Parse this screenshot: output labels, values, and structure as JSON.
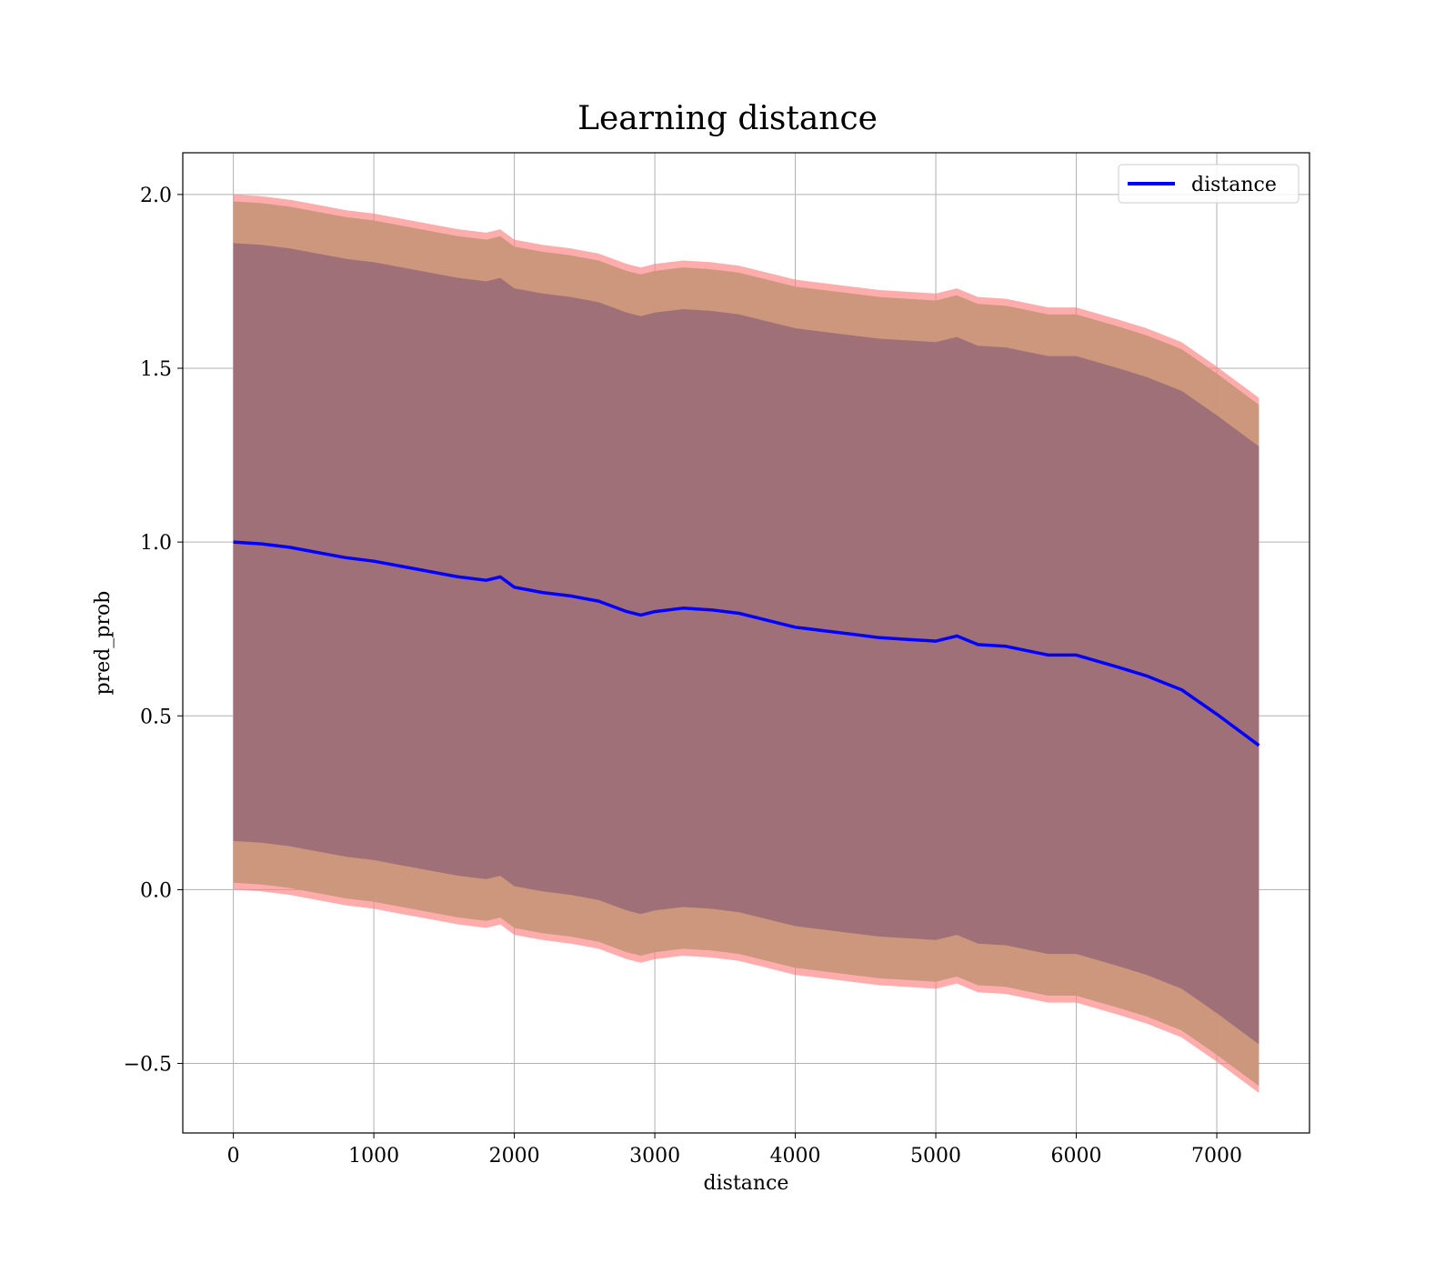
{
  "chart_data": {
    "type": "line",
    "title": "Learning distance",
    "xlabel": "distance",
    "ylabel": "pred_prob",
    "xlim": [
      -360,
      7660
    ],
    "ylim": [
      -0.7,
      2.12
    ],
    "xticks": [
      0,
      1000,
      2000,
      3000,
      4000,
      5000,
      6000,
      7000
    ],
    "yticks": [
      2.0,
      1.5,
      1.0,
      0.5,
      0.0,
      -0.5
    ],
    "ytick_labels": [
      "2.0",
      "1.5",
      "1.0",
      "0.5",
      "0.0",
      "−0.5"
    ],
    "grid": true,
    "legend_position": "top-right",
    "colors": {
      "line": "#0000ff",
      "outer_band": "#ff8080",
      "middle_band": "#c9967a",
      "inner_band": "#a07078",
      "grid": "#b0b0b0"
    },
    "x": [
      0,
      200,
      400,
      600,
      800,
      1000,
      1200,
      1400,
      1600,
      1800,
      1900,
      2000,
      2200,
      2400,
      2600,
      2800,
      2900,
      3000,
      3200,
      3400,
      3600,
      3800,
      4000,
      4200,
      4400,
      4600,
      4800,
      5000,
      5150,
      5300,
      5500,
      5800,
      6000,
      6300,
      6500,
      6750,
      7000,
      7300
    ],
    "series": [
      {
        "name": "distance",
        "values": [
          1.0,
          0.995,
          0.985,
          0.97,
          0.955,
          0.945,
          0.93,
          0.915,
          0.9,
          0.89,
          0.9,
          0.87,
          0.855,
          0.845,
          0.83,
          0.8,
          0.79,
          0.8,
          0.81,
          0.805,
          0.795,
          0.775,
          0.755,
          0.745,
          0.735,
          0.725,
          0.72,
          0.715,
          0.73,
          0.705,
          0.7,
          0.675,
          0.675,
          0.64,
          0.615,
          0.575,
          0.505,
          0.415
        ]
      }
    ],
    "bands": [
      {
        "label": "outer",
        "upper_offset": 1.0,
        "lower_offset": 1.0
      },
      {
        "label": "middle",
        "upper_offset": 0.98,
        "lower_offset": 0.98
      },
      {
        "label": "inner",
        "upper_offset": 0.86,
        "lower_offset": 0.86
      }
    ]
  }
}
